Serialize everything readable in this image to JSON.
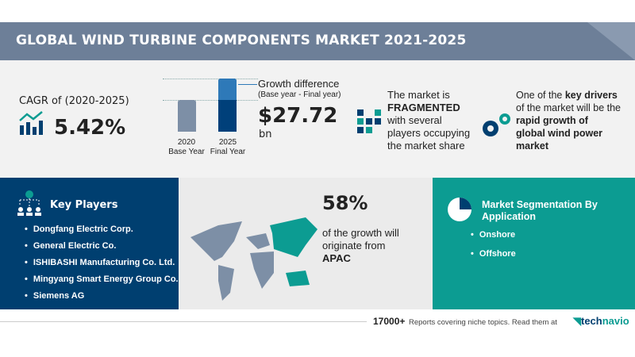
{
  "title": "GLOBAL WIND TURBINE COMPONENTS MARKET 2021-2025",
  "cagr": {
    "label": "CAGR of (2020-2025)",
    "value": "5.42%"
  },
  "growth": {
    "bars": [
      {
        "year": "2020",
        "label": "Base Year"
      },
      {
        "year": "2025",
        "label": "Final Year"
      }
    ],
    "heading": "Growth difference",
    "sub": "(Base year - Final year)",
    "value": "$27.72",
    "unit": "bn"
  },
  "market": {
    "l1": "The market is",
    "l2": "FRAGMENTED",
    "l3": "with several",
    "l4": "players occupying",
    "l5": "the market share"
  },
  "drivers": {
    "l1": "One of the",
    "l1b": "key drivers",
    "l2": "of the market will be the",
    "l3": "rapid growth of",
    "l4": "global wind power",
    "l5": "market"
  },
  "players": {
    "heading": "Key Players",
    "items": [
      "Dongfang Electric Corp.",
      "General Electric Co.",
      "ISHIBASHI Manufacturing Co. Ltd.",
      "Mingyang Smart Energy Group Co.",
      "Siemens AG"
    ]
  },
  "region": {
    "value": "58%",
    "text1": "of the growth will",
    "text2": "originate from",
    "region": "APAC"
  },
  "segmentation": {
    "heading1": "Market Segmentation By",
    "heading2": "Application",
    "items": [
      "Onshore",
      "Offshore"
    ]
  },
  "footer": {
    "count": "17000+",
    "text": "Reports covering niche topics. Read them at",
    "brand1": "tech",
    "brand2": "navio"
  },
  "colors": {
    "navy": "#003f70",
    "teal": "#0c9c92",
    "slate": "#6d7f98"
  }
}
